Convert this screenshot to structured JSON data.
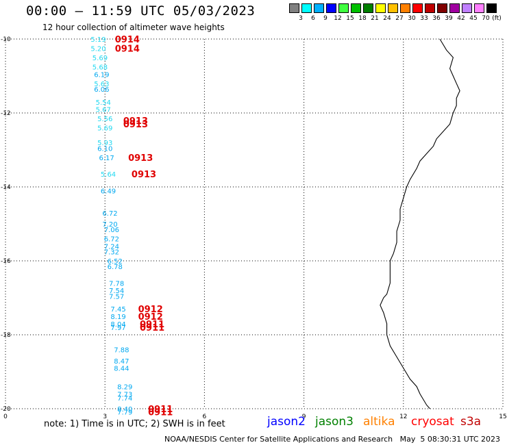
{
  "header": {
    "title": "00:00 – 11:59 UTC 05/03/2023",
    "subtitle": "12 hour collection of altimeter wave heights"
  },
  "legend": {
    "unit": "(ft)",
    "bins": [
      {
        "label": "3",
        "color": "#808080"
      },
      {
        "label": "6",
        "color": "#00ffff"
      },
      {
        "label": "9",
        "color": "#00b0ff"
      },
      {
        "label": "12",
        "color": "#0000ff"
      },
      {
        "label": "15",
        "color": "#40ff40"
      },
      {
        "label": "18",
        "color": "#00c000"
      },
      {
        "label": "21",
        "color": "#008000"
      },
      {
        "label": "24",
        "color": "#ffff00"
      },
      {
        "label": "27",
        "color": "#ffc000"
      },
      {
        "label": "30",
        "color": "#ff8000"
      },
      {
        "label": "33",
        "color": "#ff0000"
      },
      {
        "label": "36",
        "color": "#c00000"
      },
      {
        "label": "39",
        "color": "#800000"
      },
      {
        "label": "42",
        "color": "#a000a0"
      },
      {
        "label": "45",
        "color": "#c080ff"
      },
      {
        "label": "70",
        "color": "#ff80ff"
      },
      {
        "label": "",
        "color": "#000000"
      }
    ]
  },
  "map": {
    "lat_ticks": [
      "-10",
      "-12",
      "-14",
      "-16",
      "-18",
      "-20"
    ],
    "lon_ticks": [
      "0",
      "3",
      "6",
      "9",
      "12",
      "15"
    ],
    "lat_range": [
      -20,
      -10
    ],
    "lon_range": [
      0,
      15
    ],
    "grid": "dotted",
    "coast": [
      [
        13.1,
        -10.0
      ],
      [
        13.3,
        -10.3
      ],
      [
        13.5,
        -10.5
      ],
      [
        13.4,
        -10.8
      ],
      [
        13.5,
        -11.0
      ],
      [
        13.6,
        -11.2
      ],
      [
        13.7,
        -11.4
      ],
      [
        13.6,
        -11.6
      ],
      [
        13.6,
        -11.8
      ],
      [
        13.5,
        -12.0
      ],
      [
        13.4,
        -12.3
      ],
      [
        13.2,
        -12.5
      ],
      [
        13.0,
        -12.7
      ],
      [
        12.9,
        -12.9
      ],
      [
        12.7,
        -13.1
      ],
      [
        12.5,
        -13.3
      ],
      [
        12.4,
        -13.5
      ],
      [
        12.2,
        -13.8
      ],
      [
        12.1,
        -14.0
      ],
      [
        12.0,
        -14.3
      ],
      [
        11.9,
        -14.6
      ],
      [
        11.9,
        -14.9
      ],
      [
        11.8,
        -15.2
      ],
      [
        11.8,
        -15.5
      ],
      [
        11.7,
        -15.8
      ],
      [
        11.6,
        -16.0
      ],
      [
        11.6,
        -16.3
      ],
      [
        11.6,
        -16.6
      ],
      [
        11.5,
        -16.9
      ],
      [
        11.4,
        -17.0
      ],
      [
        11.3,
        -17.2
      ],
      [
        11.4,
        -17.4
      ],
      [
        11.5,
        -17.7
      ],
      [
        11.5,
        -18.0
      ],
      [
        11.6,
        -18.3
      ],
      [
        11.8,
        -18.6
      ],
      [
        12.0,
        -18.9
      ],
      [
        12.2,
        -19.2
      ],
      [
        12.4,
        -19.4
      ],
      [
        12.5,
        -19.6
      ],
      [
        12.7,
        -19.9
      ],
      [
        12.8,
        -20.0
      ]
    ],
    "swh_points": [
      {
        "lon": 2.8,
        "lat": -10.0,
        "text": "5.19",
        "color": "#20d8f0"
      },
      {
        "lon": 2.8,
        "lat": -10.25,
        "text": "5.20",
        "color": "#20d8f0"
      },
      {
        "lon": 2.85,
        "lat": -10.5,
        "text": "5.69",
        "color": "#20d8f0"
      },
      {
        "lon": 2.85,
        "lat": -10.75,
        "text": "5.68",
        "color": "#20d8f0"
      },
      {
        "lon": 2.9,
        "lat": -10.95,
        "text": "6.19",
        "color": "#00a8f0"
      },
      {
        "lon": 2.9,
        "lat": -11.2,
        "text": "5.63",
        "color": "#20d8f0"
      },
      {
        "lon": 2.9,
        "lat": -11.35,
        "text": "6.06",
        "color": "#00a8f0"
      },
      {
        "lon": 2.95,
        "lat": -11.7,
        "text": "5.54",
        "color": "#20d8f0"
      },
      {
        "lon": 2.95,
        "lat": -11.9,
        "text": "5.67",
        "color": "#20d8f0"
      },
      {
        "lon": 3.0,
        "lat": -12.15,
        "text": "5.56",
        "color": "#20d8f0"
      },
      {
        "lon": 3.0,
        "lat": -12.4,
        "text": "5.69",
        "color": "#20d8f0"
      },
      {
        "lon": 3.0,
        "lat": -12.8,
        "text": "5.93",
        "color": "#20d8f0"
      },
      {
        "lon": 3.0,
        "lat": -12.95,
        "text": "6.10",
        "color": "#00a8f0"
      },
      {
        "lon": 3.05,
        "lat": -13.2,
        "text": "6.17",
        "color": "#00a8f0"
      },
      {
        "lon": 3.1,
        "lat": -13.65,
        "text": "5.64",
        "color": "#20d8f0"
      },
      {
        "lon": 3.1,
        "lat": -14.1,
        "text": "6.49",
        "color": "#00a8f0"
      },
      {
        "lon": 3.15,
        "lat": -14.7,
        "text": "6.72",
        "color": "#00a8f0"
      },
      {
        "lon": 3.15,
        "lat": -15.0,
        "text": "7.20",
        "color": "#00a8f0"
      },
      {
        "lon": 3.2,
        "lat": -15.15,
        "text": "7.06",
        "color": "#00a8f0"
      },
      {
        "lon": 3.2,
        "lat": -15.4,
        "text": "6.72",
        "color": "#00a8f0"
      },
      {
        "lon": 3.2,
        "lat": -15.6,
        "text": "7.24",
        "color": "#00a8f0"
      },
      {
        "lon": 3.2,
        "lat": -15.75,
        "text": "7.32",
        "color": "#00a8f0"
      },
      {
        "lon": 3.3,
        "lat": -16.0,
        "text": "6.52",
        "color": "#00a8f0"
      },
      {
        "lon": 3.3,
        "lat": -16.15,
        "text": "6.78",
        "color": "#00a8f0"
      },
      {
        "lon": 3.35,
        "lat": -16.6,
        "text": "7.78",
        "color": "#00a8f0"
      },
      {
        "lon": 3.35,
        "lat": -16.8,
        "text": "7.54",
        "color": "#00a8f0"
      },
      {
        "lon": 3.35,
        "lat": -16.95,
        "text": "7.57",
        "color": "#00a8f0"
      },
      {
        "lon": 3.4,
        "lat": -17.3,
        "text": "7.45",
        "color": "#00a8f0"
      },
      {
        "lon": 3.4,
        "lat": -17.5,
        "text": "8.19",
        "color": "#00a8f0"
      },
      {
        "lon": 3.4,
        "lat": -17.7,
        "text": "8.04",
        "color": "#00a8f0"
      },
      {
        "lon": 3.4,
        "lat": -17.8,
        "text": "7.97",
        "color": "#00a8f0"
      },
      {
        "lon": 3.5,
        "lat": -18.4,
        "text": "7.88",
        "color": "#00a8f0"
      },
      {
        "lon": 3.5,
        "lat": -18.7,
        "text": "8.47",
        "color": "#00a8f0"
      },
      {
        "lon": 3.5,
        "lat": -18.9,
        "text": "8.44",
        "color": "#00a8f0"
      },
      {
        "lon": 3.6,
        "lat": -19.4,
        "text": "8.29",
        "color": "#00a8f0"
      },
      {
        "lon": 3.6,
        "lat": -19.6,
        "text": "7.73",
        "color": "#00a8f0"
      },
      {
        "lon": 3.6,
        "lat": -19.7,
        "text": "7.74",
        "color": "#00a8f0"
      },
      {
        "lon": 3.6,
        "lat": -20.0,
        "text": "8.40",
        "color": "#00a8f0"
      },
      {
        "lon": 3.6,
        "lat": -20.08,
        "text": "7.79",
        "color": "#00a8f0"
      }
    ],
    "time_points": [
      {
        "lon": 3.3,
        "lat": -10.0,
        "text": "0914"
      },
      {
        "lon": 3.3,
        "lat": -10.25,
        "text": "0914"
      },
      {
        "lon": 3.55,
        "lat": -12.2,
        "text": "0913"
      },
      {
        "lon": 3.55,
        "lat": -12.3,
        "text": "0913"
      },
      {
        "lon": 3.7,
        "lat": -13.2,
        "text": "0913"
      },
      {
        "lon": 3.8,
        "lat": -13.65,
        "text": "0913"
      },
      {
        "lon": 4.0,
        "lat": -17.3,
        "text": "0912"
      },
      {
        "lon": 4.0,
        "lat": -17.5,
        "text": "0912"
      },
      {
        "lon": 4.05,
        "lat": -17.7,
        "text": "0911"
      },
      {
        "lon": 4.05,
        "lat": -17.8,
        "text": "0911"
      },
      {
        "lon": 4.3,
        "lat": -20.0,
        "text": "0911"
      },
      {
        "lon": 4.3,
        "lat": -20.08,
        "text": "0911"
      }
    ]
  },
  "footer": {
    "note": "note: 1) Time is in UTC; 2) SWH is in feet",
    "satellites": [
      {
        "label": "jason2",
        "color": "#0000ff"
      },
      {
        "label": "jason3",
        "color": "#008000"
      },
      {
        "label": "altika",
        "color": "#ff8000"
      },
      {
        "label": "cryosat",
        "color": "#ff0000"
      },
      {
        "label": "s3a",
        "color": "#c00000"
      }
    ],
    "credit": "NOAA/NESDIS Center for Satellite Applications and Research   May  5 08:30:31 UTC 2023"
  }
}
